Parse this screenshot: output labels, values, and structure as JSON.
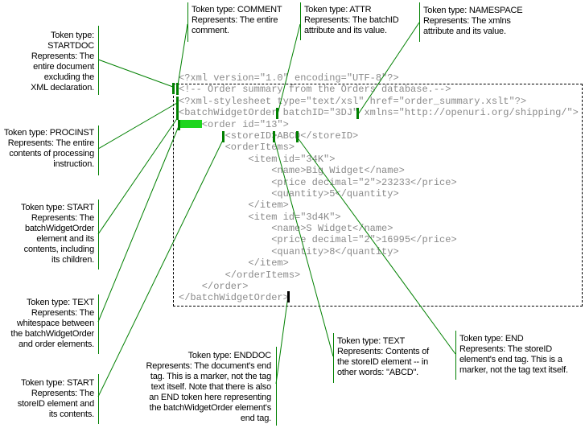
{
  "code_lines": [
    "<?xml version=\"1.0\" encoding=\"UTF-8\"?>",
    "<!-- Order summary from the Orders database.-->",
    "<?xml-stylesheet type=\"text/xsl\" href=\"order_summary.xslt\"?>",
    "<batchWidgetOrder batchID=\"3DJ\" xmlns=\"http://openuri.org/shipping/\">",
    "    <order id=\"13\">",
    "        <storeID>ABCD</storeID>",
    "        <orderItems>",
    "            <item id=\"34K\">",
    "                <name>Big Widget</name>",
    "                <price decimal=\"2\">23233</price>",
    "                <quantity>5</quantity>",
    "            </item>",
    "            <item id=\"3d4K\">",
    "                <name>S Widget</name>",
    "                <price decimal=\"2\">16995</price>",
    "                <quantity>8</quantity>",
    "            </item>",
    "        </orderItems>",
    "    </order>",
    "</batchWidgetOrder>"
  ],
  "annotations": {
    "startdoc": [
      "Token type:",
      "STARTDOC",
      "Represents: The",
      "entire document",
      "excluding the",
      "XML declaration."
    ],
    "comment": [
      "Token type: COMMENT",
      "Represents: The entire",
      "comment."
    ],
    "attr": [
      "Token type: ATTR",
      "Represents: The batchID",
      "attribute and its value."
    ],
    "namespace": [
      "Token type: NAMESPACE",
      "Represents: The xmlns",
      "attribute and its value."
    ],
    "procinst": [
      "Token type: PROCINST",
      "Represents: The entire",
      "contents of processing",
      "instruction."
    ],
    "start_batch": [
      "Token type: START",
      "Represents: The",
      "batchWidgetOrder",
      "element and its",
      "contents, including",
      "its children."
    ],
    "text_ws": [
      "Token type: TEXT",
      "Represents: The",
      "whitespace between",
      "the batchWidgetOrder",
      "and order elements."
    ],
    "start_store": [
      "Token type: START",
      "Represents: The",
      "storeID element and",
      "its contents."
    ],
    "enddoc": [
      "Token type: ENDDOC",
      "Represents: The document's end",
      "tag. This is a marker, not the tag",
      "text itself. Note that there is also",
      "an END token here representing",
      "the batchWidgetOrder element's",
      "end tag."
    ],
    "text_abcd": [
      "Token type: TEXT",
      "Represents: Contents of",
      "the storeID element -- in",
      "other words: \"ABCD\"."
    ],
    "end": [
      "Token type: END",
      "Represents: The storeID",
      "element's end tag. This is a",
      "marker, not the tag text itself."
    ]
  },
  "colors": {
    "code_text": "#8a8a8a",
    "connector": "#008000",
    "marker": "#008000",
    "whitespace_highlight": "#1ed51e",
    "enddoc_marker": "#000000"
  }
}
